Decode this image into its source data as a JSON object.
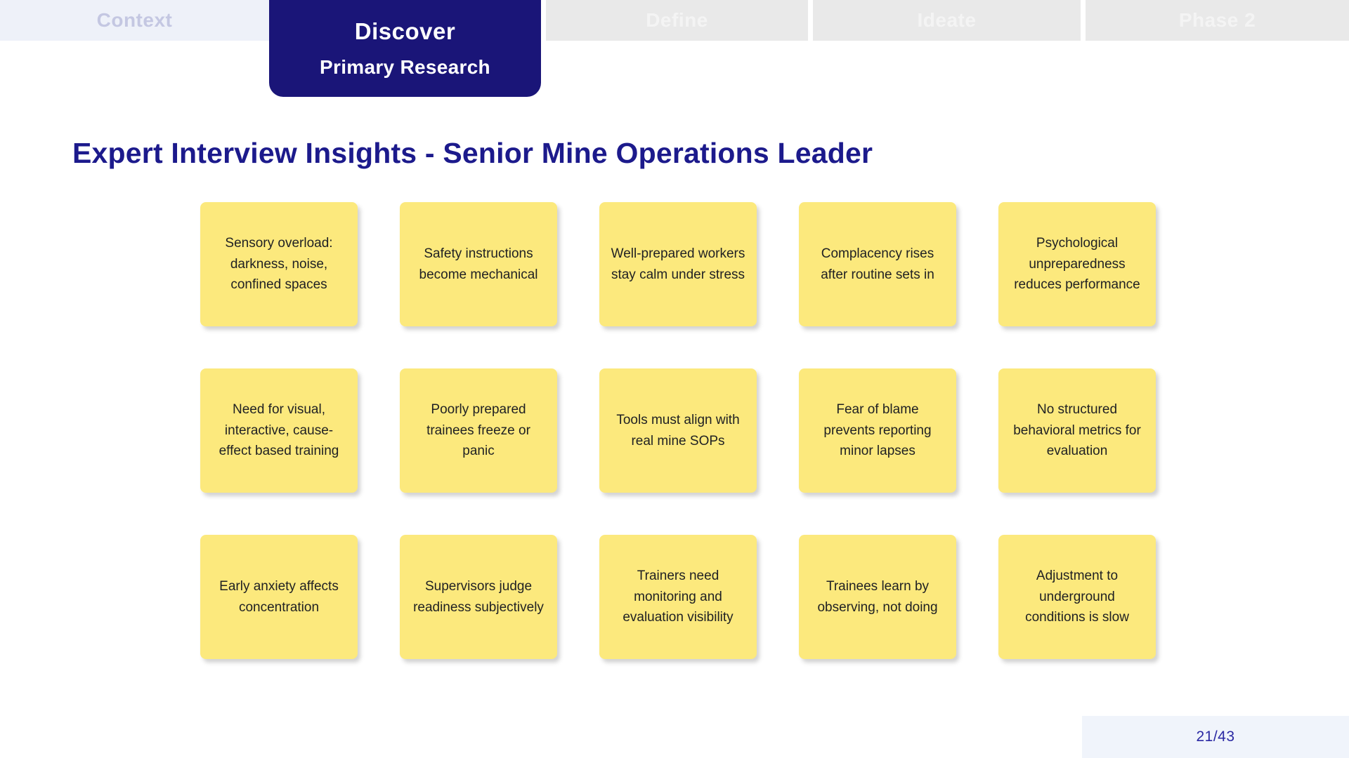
{
  "nav": {
    "tabs": [
      {
        "label": "Context"
      },
      {
        "label": "Discover",
        "sublabel": "Primary Research"
      },
      {
        "label": "Define"
      },
      {
        "label": "Ideate"
      },
      {
        "label": "Phase 2"
      }
    ]
  },
  "slide": {
    "title": "Expert Interview Insights - Senior Mine Operations Leader",
    "notes": [
      "Sensory overload: darkness, noise, confined spaces",
      "Safety instructions become mechanical",
      "Well-prepared workers stay calm under stress",
      "Complacency rises after routine sets in",
      "Psychological unpreparedness reduces performance",
      "Need for visual, interactive, cause-effect based training",
      "Poorly prepared trainees freeze or panic",
      "Tools must align with real mine SOPs",
      "Fear of blame prevents reporting minor lapses",
      "No structured behavioral metrics for evaluation",
      "Early anxiety affects concentration",
      "Supervisors judge readiness subjectively",
      "Trainers need monitoring and evaluation visibility",
      "Trainees learn by observing, not doing",
      "Adjustment to underground conditions is slow"
    ]
  },
  "footer": {
    "page_indicator": "21/43"
  },
  "colors": {
    "accent_navy": "#1a1578",
    "title_navy": "#1c1a8c",
    "note_yellow": "#fce97d",
    "tab_inactive_bg": "#e9e9e9",
    "tab_visited_bg": "#eef1f9",
    "footer_bg": "#f0f4fb"
  }
}
